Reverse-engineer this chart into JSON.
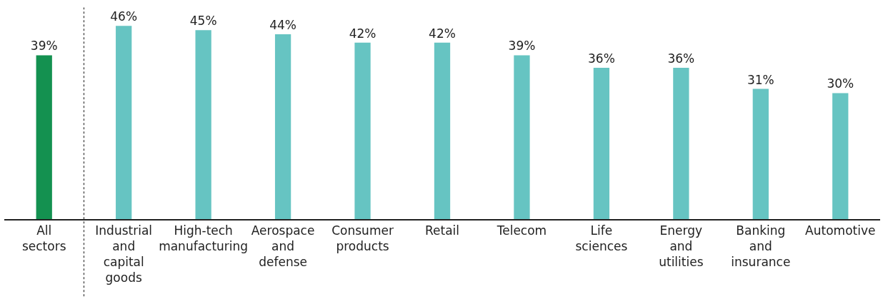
{
  "chart_data": {
    "type": "bar",
    "categories": [
      "All sectors",
      "Industrial and capital goods",
      "High-tech manufacturing",
      "Aerospace and defense",
      "Consumer products",
      "Retail",
      "Telecom",
      "Life sciences",
      "Energy and utilities",
      "Banking and insurance",
      "Automotive"
    ],
    "values": [
      39,
      46,
      45,
      44,
      42,
      42,
      39,
      36,
      36,
      31,
      30
    ],
    "colors": [
      "#149150",
      "#66c4c2",
      "#66c4c2",
      "#66c4c2",
      "#66c4c2",
      "#66c4c2",
      "#66c4c2",
      "#66c4c2",
      "#66c4c2",
      "#66c4c2",
      "#66c4c2"
    ],
    "value_labels": [
      "39%",
      "46%",
      "45%",
      "44%",
      "42%",
      "42%",
      "39%",
      "36%",
      "36%",
      "31%",
      "30%"
    ],
    "grid": false,
    "legend": false
  }
}
